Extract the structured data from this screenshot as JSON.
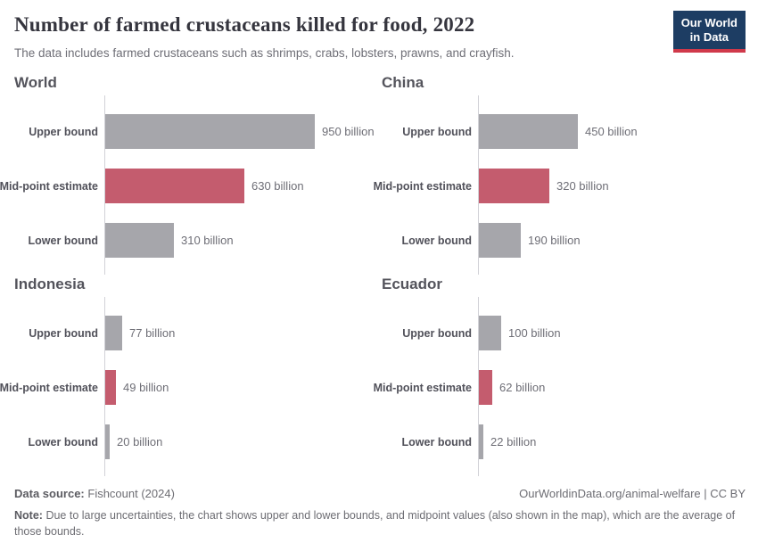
{
  "header": {
    "title": "Number of farmed crustaceans killed for food, 2022",
    "subtitle": "The data includes farmed crustaceans such as shrimps, crabs, lobsters, prawns, and crayfish.",
    "logo": {
      "line1": "Our World",
      "line2": "in Data"
    }
  },
  "chart_data": {
    "type": "bar",
    "orientation": "horizontal",
    "title": "Number of farmed crustaceans killed for food, 2022",
    "unit": "billion",
    "categories": [
      "Upper bound",
      "Mid-point estimate",
      "Lower bound"
    ],
    "bar_colors": [
      "#a6a6ab",
      "#c45c6e",
      "#a6a6ab"
    ],
    "xlim": [
      0,
      950
    ],
    "grid": false,
    "legend": "none",
    "panels": [
      {
        "title": "World",
        "values": [
          950,
          630,
          310
        ],
        "value_labels": [
          "950 billion",
          "630 billion",
          "310 billion"
        ]
      },
      {
        "title": "China",
        "values": [
          450,
          320,
          190
        ],
        "value_labels": [
          "450 billion",
          "320 billion",
          "190 billion"
        ]
      },
      {
        "title": "Indonesia",
        "values": [
          77,
          49,
          20
        ],
        "value_labels": [
          "77 billion",
          "49 billion",
          "20 billion"
        ]
      },
      {
        "title": "Ecuador",
        "values": [
          100,
          62,
          22
        ],
        "value_labels": [
          "100 billion",
          "62 billion",
          "22 billion"
        ]
      }
    ]
  },
  "footer": {
    "datasource_label": "Data source:",
    "datasource_value": "Fishcount (2024)",
    "link_text": "OurWorldinData.org/animal-welfare | CC BY",
    "note_label": "Note:",
    "note_text": "Due to large uncertainties, the chart shows upper and lower bounds, and midpoint values (also shown in the map), which are the average of those bounds."
  },
  "colors": {
    "bar_gray": "#a6a6ab",
    "bar_red": "#c45c6e",
    "axis_line": "#d2d2d7",
    "logo_navy": "#1d3d63",
    "logo_stripe": "#d0394a"
  }
}
